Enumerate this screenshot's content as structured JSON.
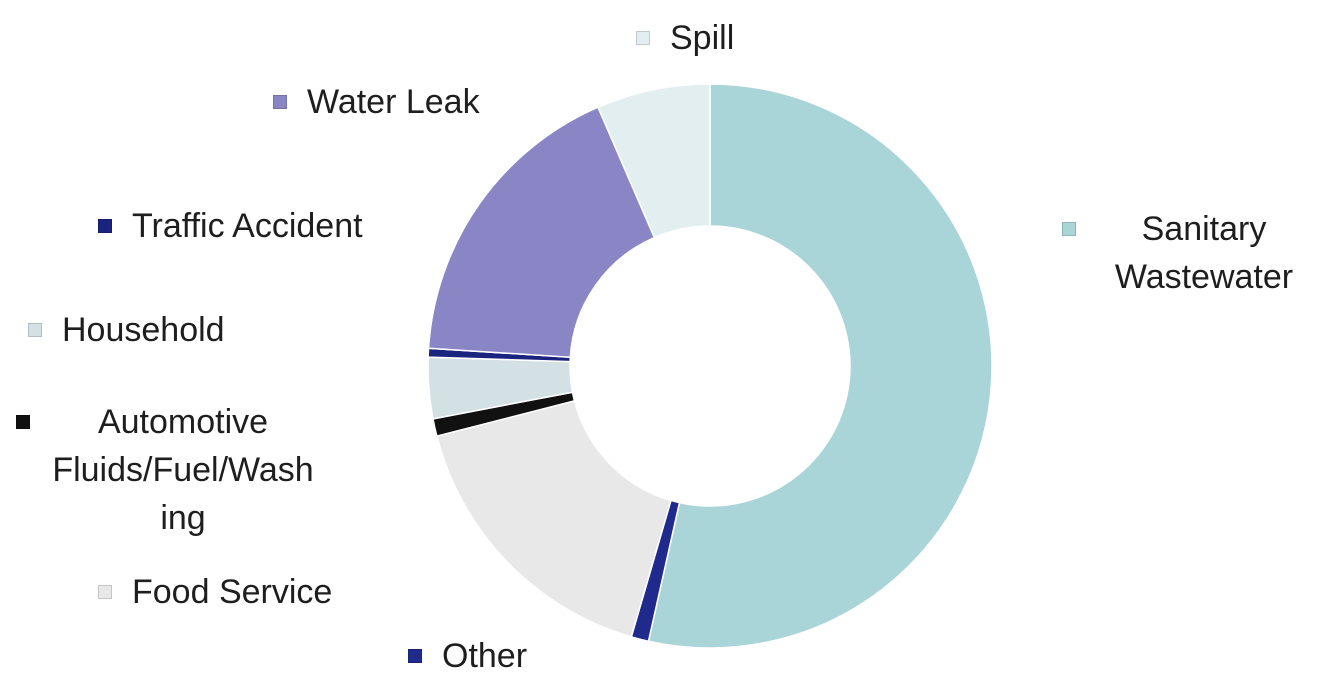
{
  "chart_data": {
    "type": "donut",
    "categories": [
      "Sanitary Wastewater",
      "Other",
      "Food Service",
      "Automotive Fluids/Fuel/Washing",
      "Household",
      "Traffic  Accident",
      "Water Leak",
      "Spill"
    ],
    "values": [
      53.5,
      1,
      16.5,
      1,
      3.5,
      0.5,
      17.5,
      6.5
    ],
    "colors": [
      "#a9d4d8",
      "#1f2a8c",
      "#e8e8e8",
      "#111111",
      "#d3e0e4",
      "#1a237e",
      "#8a86c6",
      "#e3eef0"
    ]
  }
}
